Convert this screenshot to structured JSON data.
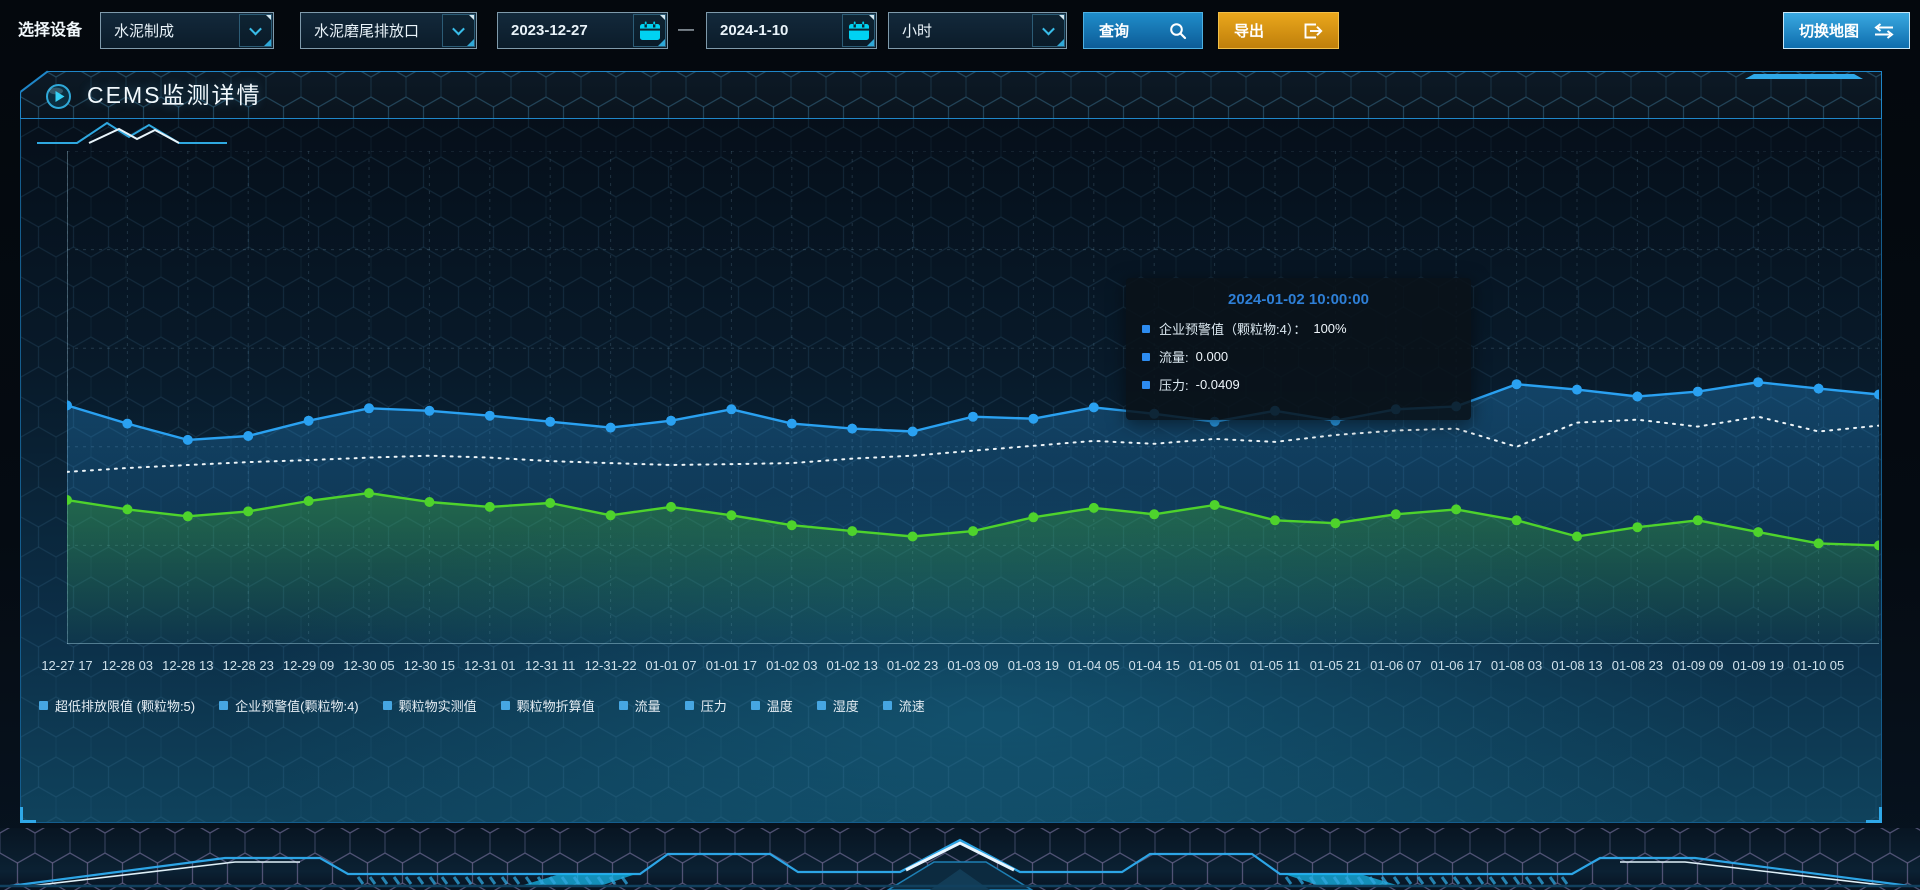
{
  "toolbar": {
    "device_label": "选择设备",
    "device_category": {
      "value": "水泥制成"
    },
    "device_outlet": {
      "value": "水泥磨尾排放口"
    },
    "date_start": "2023-12-27",
    "range_separator": "—",
    "date_end": "2024-1-10",
    "interval": {
      "value": "小时"
    },
    "query_label": "查询",
    "export_label": "导出",
    "switch_map_label": "切换地图"
  },
  "panel": {
    "title": "CEMS监测详情"
  },
  "tooltip": {
    "title": "2024-01-02 10:00:00",
    "marker_color": "#2d8cf0",
    "items": [
      {
        "label": "企业预警值（颗粒物:4）：",
        "value": "100%"
      },
      {
        "label": "流量:",
        "value": "0.000"
      },
      {
        "label": "压力:",
        "value": "-0.0409"
      }
    ]
  },
  "legend": {
    "marker_color": "#46a6e2",
    "items": [
      "超低排放限值 (颗粒物:5)",
      "企业预警值(颗粒物:4)",
      "颗粒物实测值",
      "颗粒物折算值",
      "流量",
      "压力",
      "温度",
      "湿度",
      "流速"
    ]
  },
  "chart_data": {
    "type": "line",
    "note": "y-axis has no visible tick labels; values are estimated percent of plot height (0 = bottom axis, 100 = top gridline). Each series has 31 points; the last point extends to the right edge past the final x label.",
    "grid": {
      "style": "dashed",
      "h_lines": 6,
      "v_line_per_tick": true
    },
    "legend_position": "bottom-left",
    "x_labels": [
      "12-27 17",
      "12-28 03",
      "12-28 13",
      "12-28 23",
      "12-29 09",
      "12-30 05",
      "12-30 15",
      "12-31 01",
      "12-31 11",
      "12-31-22",
      "01-01 07",
      "01-01 17",
      "01-02 03",
      "01-02 13",
      "01-02 23",
      "01-03 09",
      "01-03 19",
      "01-04 05",
      "01-04 15",
      "01-05 01",
      "01-05 11",
      "01-05 21",
      "01-06 07",
      "01-06 17",
      "01-08 03",
      "01-08 13",
      "01-08 23",
      "01-09 09",
      "01-09 19",
      "01-10 05"
    ],
    "series": [
      {
        "name": "企业预警值(颗粒物:4)",
        "color": "#ecf4f8",
        "line_style": "dotted",
        "markers": false,
        "area": false,
        "values": [
          34.9,
          35.7,
          36.3,
          36.9,
          37.3,
          37.8,
          38.2,
          37.8,
          37.1,
          36.7,
          36.3,
          36.5,
          36.7,
          37.6,
          38.2,
          39.2,
          40.2,
          41.2,
          40.6,
          41.6,
          41.0,
          42.4,
          43.3,
          43.7,
          40.0,
          44.9,
          45.5,
          44.1,
          46.1,
          43.1,
          44.3
        ]
      },
      {
        "name": "流量",
        "color": "#2aa1f1",
        "line_style": "solid",
        "markers": true,
        "area": true,
        "values": [
          48.4,
          44.7,
          41.4,
          42.2,
          45.3,
          47.8,
          47.3,
          46.3,
          45.1,
          43.9,
          45.3,
          47.6,
          44.7,
          43.7,
          43.1,
          46.1,
          45.7,
          48.0,
          46.7,
          45.1,
          47.3,
          45.3,
          47.6,
          48.2,
          52.7,
          51.6,
          50.2,
          51.2,
          53.1,
          51.8,
          50.6
        ]
      },
      {
        "name": "压力",
        "color": "#4ed32c",
        "line_style": "solid",
        "markers": true,
        "area": true,
        "values": [
          29.2,
          27.3,
          25.9,
          26.9,
          29.0,
          30.6,
          28.8,
          27.8,
          28.6,
          26.1,
          27.8,
          26.1,
          24.1,
          22.9,
          21.8,
          22.9,
          25.7,
          27.6,
          26.3,
          28.2,
          25.1,
          24.5,
          26.3,
          27.3,
          25.1,
          21.8,
          23.7,
          25.1,
          22.7,
          20.4,
          20.0
        ]
      }
    ]
  },
  "colors": {
    "accent_cyan": "#35b6e8",
    "query_button_blue": "#1577b5",
    "export_button_orange": "#dd9a12",
    "tooltip_title_blue": "#2e7fd6"
  }
}
